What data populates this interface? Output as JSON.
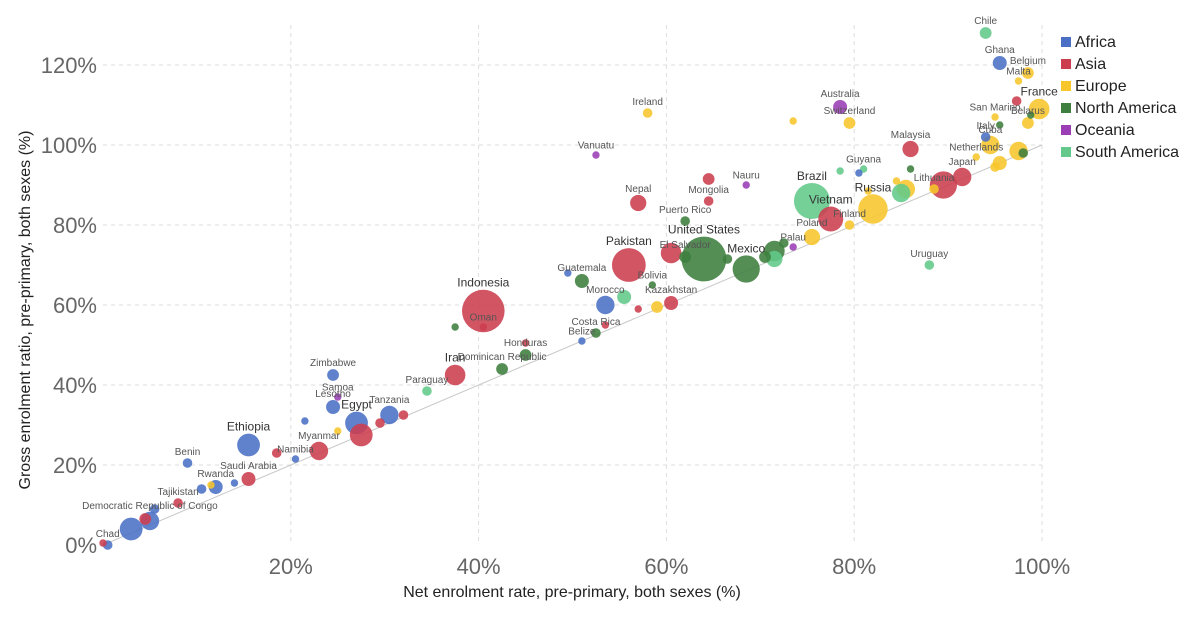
{
  "chart_data": {
    "type": "scatter",
    "xlabel": "Net enrolment rate, pre-primary, both sexes (%)",
    "ylabel": "Gross enrolment ratio, pre-primary, both sexes (%)",
    "xlim": [
      0,
      100
    ],
    "ylim": [
      0,
      130
    ],
    "x_ticks": [
      {
        "value": 20,
        "label": "20%"
      },
      {
        "value": 40,
        "label": "40%"
      },
      {
        "value": 60,
        "label": "60%"
      },
      {
        "value": 80,
        "label": "80%"
      },
      {
        "value": 100,
        "label": "100%"
      }
    ],
    "y_ticks": [
      {
        "value": 0,
        "label": "0%"
      },
      {
        "value": 20,
        "label": "20%"
      },
      {
        "value": 40,
        "label": "40%"
      },
      {
        "value": 60,
        "label": "60%"
      },
      {
        "value": 80,
        "label": "80%"
      },
      {
        "value": 100,
        "label": "100%"
      },
      {
        "value": 120,
        "label": "120%"
      }
    ],
    "grid": true,
    "legend_position": "top-right",
    "regions": [
      {
        "name": "Africa",
        "color": "#4a6fc4"
      },
      {
        "name": "Asia",
        "color": "#cc3d4e"
      },
      {
        "name": "Europe",
        "color": "#f7c62b"
      },
      {
        "name": "North America",
        "color": "#3e7e3e"
      },
      {
        "name": "Oceania",
        "color": "#9b3db5"
      },
      {
        "name": "South America",
        "color": "#62c98a"
      }
    ],
    "points": [
      {
        "label": "Chile",
        "region": "South America",
        "x": 94.0,
        "y": 128.0,
        "size": 2
      },
      {
        "label": "Ghana",
        "region": "Africa",
        "x": 95.5,
        "y": 120.5,
        "size": 2.5
      },
      {
        "label": "Belgium",
        "region": "Europe",
        "x": 98.5,
        "y": 118.0,
        "size": 2
      },
      {
        "label": "Malta",
        "region": "Europe",
        "x": 97.5,
        "y": 116.0,
        "size": 1
      },
      {
        "label": "France",
        "region": "Europe",
        "x": 99.7,
        "y": 109.0,
        "size": 4
      },
      {
        "label": "",
        "region": "Asia",
        "x": 97.3,
        "y": 111.0,
        "size": 1.5
      },
      {
        "label": "San Marino",
        "region": "Europe",
        "x": 95.0,
        "y": 107.0,
        "size": 1
      },
      {
        "label": "Belarus",
        "region": "Europe",
        "x": 98.5,
        "y": 105.5,
        "size": 2
      },
      {
        "label": "",
        "region": "North America",
        "x": 98.8,
        "y": 107.5,
        "size": 1
      },
      {
        "label": "",
        "region": "North America",
        "x": 95.5,
        "y": 105.0,
        "size": 1
      },
      {
        "label": "Italy",
        "region": "Africa",
        "x": 94.0,
        "y": 102.0,
        "size": 1.5
      },
      {
        "label": "Cuba",
        "region": "Europe",
        "x": 94.5,
        "y": 100.0,
        "size": 3.5
      },
      {
        "label": "",
        "region": "Europe",
        "x": 97.5,
        "y": 98.5,
        "size": 3.5
      },
      {
        "label": "",
        "region": "North America",
        "x": 98.0,
        "y": 98.0,
        "size": 1.5
      },
      {
        "label": "Netherlands",
        "region": "Europe",
        "x": 93.0,
        "y": 97.0,
        "size": 1
      },
      {
        "label": "",
        "region": "Europe",
        "x": 95.5,
        "y": 95.5,
        "size": 2.5
      },
      {
        "label": "",
        "region": "Europe",
        "x": 95.0,
        "y": 94.5,
        "size": 1.5
      },
      {
        "label": "Japan",
        "region": "Asia",
        "x": 91.5,
        "y": 92.0,
        "size": 3.5
      },
      {
        "label": "",
        "region": "Asia",
        "x": 89.5,
        "y": 90.0,
        "size": 5.5
      },
      {
        "label": "Lithuania",
        "region": "Europe",
        "x": 88.5,
        "y": 89.0,
        "size": 1.5
      },
      {
        "label": "Australia",
        "region": "Oceania",
        "x": 78.5,
        "y": 109.5,
        "size": 2.5
      },
      {
        "label": "Switzerland",
        "region": "Europe",
        "x": 79.5,
        "y": 105.5,
        "size": 2
      },
      {
        "label": "",
        "region": "Europe",
        "x": 73.5,
        "y": 106.0,
        "size": 1
      },
      {
        "label": "Ireland",
        "region": "Europe",
        "x": 58.0,
        "y": 108.0,
        "size": 1.5
      },
      {
        "label": "Vanuatu",
        "region": "Oceania",
        "x": 52.5,
        "y": 97.5,
        "size": 1
      },
      {
        "label": "Malaysia",
        "region": "Asia",
        "x": 86.0,
        "y": 99.0,
        "size": 3
      },
      {
        "label": "Guyana",
        "region": "South America",
        "x": 81.0,
        "y": 94.0,
        "size": 1
      },
      {
        "label": "",
        "region": "Africa",
        "x": 80.5,
        "y": 93.0,
        "size": 1
      },
      {
        "label": "",
        "region": "South America",
        "x": 78.5,
        "y": 93.5,
        "size": 1
      },
      {
        "label": "",
        "region": "North America",
        "x": 86.0,
        "y": 94.0,
        "size": 1
      },
      {
        "label": "Nauru",
        "region": "Oceania",
        "x": 68.5,
        "y": 90.0,
        "size": 1
      },
      {
        "label": "",
        "region": "Asia",
        "x": 64.5,
        "y": 91.5,
        "size": 2
      },
      {
        "label": "Mongolia",
        "region": "Asia",
        "x": 64.5,
        "y": 86.0,
        "size": 1.5
      },
      {
        "label": "Nepal",
        "region": "Asia",
        "x": 57.0,
        "y": 85.5,
        "size": 3
      },
      {
        "label": "Brazil",
        "region": "South America",
        "x": 75.5,
        "y": 86.0,
        "size": 7.5
      },
      {
        "label": "Russia",
        "region": "Europe",
        "x": 82.0,
        "y": 84.0,
        "size": 6
      },
      {
        "label": "",
        "region": "Europe",
        "x": 85.5,
        "y": 89.0,
        "size": 3.5
      },
      {
        "label": "",
        "region": "South America",
        "x": 85.0,
        "y": 88.0,
        "size": 3.5
      },
      {
        "label": "",
        "region": "Europe",
        "x": 81.5,
        "y": 88.5,
        "size": 1
      },
      {
        "label": "",
        "region": "Europe",
        "x": 84.5,
        "y": 91.0,
        "size": 1
      },
      {
        "label": "Vietnam",
        "region": "Asia",
        "x": 77.5,
        "y": 81.5,
        "size": 5
      },
      {
        "label": "Finland",
        "region": "Europe",
        "x": 79.5,
        "y": 80.0,
        "size": 1.5
      },
      {
        "label": "Poland",
        "region": "Europe",
        "x": 75.5,
        "y": 77.0,
        "size": 3
      },
      {
        "label": "Puerto Rico",
        "region": "North America",
        "x": 62.0,
        "y": 81.0,
        "size": 1.5
      },
      {
        "label": "Pakistan",
        "region": "Asia",
        "x": 56.0,
        "y": 70.0,
        "size": 7
      },
      {
        "label": "",
        "region": "Asia",
        "x": 60.5,
        "y": 73.0,
        "size": 4
      },
      {
        "label": "United States",
        "region": "North America",
        "x": 64.0,
        "y": 71.5,
        "size": 9.5
      },
      {
        "label": "El Salvador",
        "region": "North America",
        "x": 62.0,
        "y": 72.0,
        "size": 2
      },
      {
        "label": "",
        "region": "North America",
        "x": 66.5,
        "y": 71.5,
        "size": 1.5
      },
      {
        "label": "Mexico",
        "region": "North America",
        "x": 68.5,
        "y": 69.0,
        "size": 5.5
      },
      {
        "label": "",
        "region": "North America",
        "x": 71.5,
        "y": 73.5,
        "size": 4
      },
      {
        "label": "",
        "region": "South America",
        "x": 71.5,
        "y": 71.5,
        "size": 3
      },
      {
        "label": "",
        "region": "North America",
        "x": 70.5,
        "y": 72.0,
        "size": 2
      },
      {
        "label": "Palau",
        "region": "Oceania",
        "x": 73.5,
        "y": 74.5,
        "size": 1
      },
      {
        "label": "",
        "region": "North America",
        "x": 72.5,
        "y": 75.5,
        "size": 1.5
      },
      {
        "label": "Uruguay",
        "region": "South America",
        "x": 88.0,
        "y": 70.0,
        "size": 1.5
      },
      {
        "label": "Guatemala",
        "region": "North America",
        "x": 51.0,
        "y": 66.0,
        "size": 2.5
      },
      {
        "label": "",
        "region": "Africa",
        "x": 49.5,
        "y": 68.0,
        "size": 1
      },
      {
        "label": "Bolivia",
        "region": "North America",
        "x": 58.5,
        "y": 65.0,
        "size": 1
      },
      {
        "label": "Morocco",
        "region": "Africa",
        "x": 53.5,
        "y": 60.0,
        "size": 3.5
      },
      {
        "label": "",
        "region": "South America",
        "x": 55.5,
        "y": 62.0,
        "size": 2.5
      },
      {
        "label": "Kazakhstan",
        "region": "Asia",
        "x": 60.5,
        "y": 60.5,
        "size": 2.5
      },
      {
        "label": "",
        "region": "Europe",
        "x": 59.0,
        "y": 59.5,
        "size": 2
      },
      {
        "label": "",
        "region": "Asia",
        "x": 57.0,
        "y": 59.0,
        "size": 1
      },
      {
        "label": "Indonesia",
        "region": "Asia",
        "x": 40.5,
        "y": 58.5,
        "size": 9
      },
      {
        "label": "Oman",
        "region": "Asia",
        "x": 40.5,
        "y": 54.5,
        "size": 1
      },
      {
        "label": "",
        "region": "North America",
        "x": 37.5,
        "y": 54.5,
        "size": 1
      },
      {
        "label": "Costa Rica",
        "region": "North America",
        "x": 52.5,
        "y": 53.0,
        "size": 1.5
      },
      {
        "label": "",
        "region": "Asia",
        "x": 53.5,
        "y": 55.0,
        "size": 1
      },
      {
        "label": "Belize",
        "region": "Africa",
        "x": 51.0,
        "y": 51.0,
        "size": 1
      },
      {
        "label": "Honduras",
        "region": "North America",
        "x": 45.0,
        "y": 47.5,
        "size": 2
      },
      {
        "label": "",
        "region": "Asia",
        "x": 45.0,
        "y": 50.5,
        "size": 1
      },
      {
        "label": "Dominican Republic",
        "region": "North America",
        "x": 42.5,
        "y": 44.0,
        "size": 2
      },
      {
        "label": "Iran",
        "region": "Asia",
        "x": 37.5,
        "y": 42.5,
        "size": 4
      },
      {
        "label": "Paraguay",
        "region": "South America",
        "x": 34.5,
        "y": 38.5,
        "size": 1.5
      },
      {
        "label": "Zimbabwe",
        "region": "Africa",
        "x": 24.5,
        "y": 42.5,
        "size": 2
      },
      {
        "label": "Samoa",
        "region": "Oceania",
        "x": 25.0,
        "y": 37.0,
        "size": 1
      },
      {
        "label": "Lesotho",
        "region": "Africa",
        "x": 24.5,
        "y": 34.5,
        "size": 2.5
      },
      {
        "label": "",
        "region": "Africa",
        "x": 21.5,
        "y": 31.0,
        "size": 1
      },
      {
        "label": "Egypt",
        "region": "Africa",
        "x": 27.0,
        "y": 30.5,
        "size": 4.5
      },
      {
        "label": "",
        "region": "Asia",
        "x": 27.5,
        "y": 27.5,
        "size": 4.5
      },
      {
        "label": "",
        "region": "Europe",
        "x": 25.0,
        "y": 28.5,
        "size": 1
      },
      {
        "label": "Tanzania",
        "region": "Africa",
        "x": 30.5,
        "y": 32.5,
        "size": 3.5
      },
      {
        "label": "",
        "region": "Asia",
        "x": 32.0,
        "y": 32.5,
        "size": 1.5
      },
      {
        "label": "",
        "region": "Asia",
        "x": 29.5,
        "y": 30.5,
        "size": 1.5
      },
      {
        "label": "Myanmar",
        "region": "Asia",
        "x": 23.0,
        "y": 23.5,
        "size": 3.5
      },
      {
        "label": "Namibia",
        "region": "Africa",
        "x": 20.5,
        "y": 21.5,
        "size": 1
      },
      {
        "label": "",
        "region": "Asia",
        "x": 18.5,
        "y": 23.0,
        "size": 1.5
      },
      {
        "label": "Ethiopia",
        "region": "Africa",
        "x": 15.5,
        "y": 25.0,
        "size": 4.5
      },
      {
        "label": "Benin",
        "region": "Africa",
        "x": 9.0,
        "y": 20.5,
        "size": 1.5
      },
      {
        "label": "Saudi Arabia",
        "region": "Asia",
        "x": 15.5,
        "y": 16.5,
        "size": 2.5
      },
      {
        "label": "",
        "region": "Africa",
        "x": 14.0,
        "y": 15.5,
        "size": 1
      },
      {
        "label": "Rwanda",
        "region": "Africa",
        "x": 12.0,
        "y": 14.5,
        "size": 2.5
      },
      {
        "label": "",
        "region": "Europe",
        "x": 11.5,
        "y": 15.0,
        "size": 1
      },
      {
        "label": "",
        "region": "Africa",
        "x": 10.5,
        "y": 14.0,
        "size": 1.5
      },
      {
        "label": "Tajikistan",
        "region": "Asia",
        "x": 8.0,
        "y": 10.5,
        "size": 1.5
      },
      {
        "label": "",
        "region": "Africa",
        "x": 5.5,
        "y": 9.0,
        "size": 1.5
      },
      {
        "label": "Democratic Republic of Congo",
        "region": "Africa",
        "x": 5.0,
        "y": 6.0,
        "size": 3.5
      },
      {
        "label": "",
        "region": "Asia",
        "x": 4.5,
        "y": 6.5,
        "size": 2
      },
      {
        "label": "",
        "region": "Africa",
        "x": 3.0,
        "y": 4.0,
        "size": 4.5
      },
      {
        "label": "Chad",
        "region": "Africa",
        "x": 0.5,
        "y": 0.0,
        "size": 1.5
      },
      {
        "label": "",
        "region": "Asia",
        "x": 0.0,
        "y": 0.5,
        "size": 1
      }
    ]
  }
}
